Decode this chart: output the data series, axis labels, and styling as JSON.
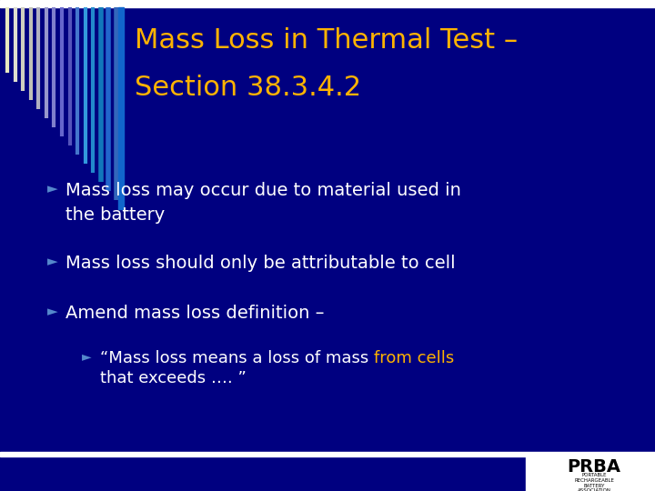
{
  "bg_color": "#000080",
  "title_line1": "Mass Loss in Thermal Test –",
  "title_line2": "Section 38.3.4.2",
  "title_color": "#FFB300",
  "title_fontsize": 22,
  "bullet_color": "#FFFFFF",
  "bullet_fontsize": 14,
  "bullet_marker_color": "#5588CC",
  "sub_bullet_text_part1": "“Mass loss means a loss of mass ",
  "sub_bullet_text_highlight": "from cells",
  "sub_bullet_text_part2": "that exceeds …. ”",
  "sub_bullet_highlight_color": "#FFB300",
  "sub_bullet_fontsize": 13,
  "top_bar_color": "#FFFFFF",
  "bottom_bar_color": "#FFFFFF",
  "logo_bg": "#FFFFFF",
  "figsize": [
    7.2,
    5.4
  ],
  "dpi": 100
}
